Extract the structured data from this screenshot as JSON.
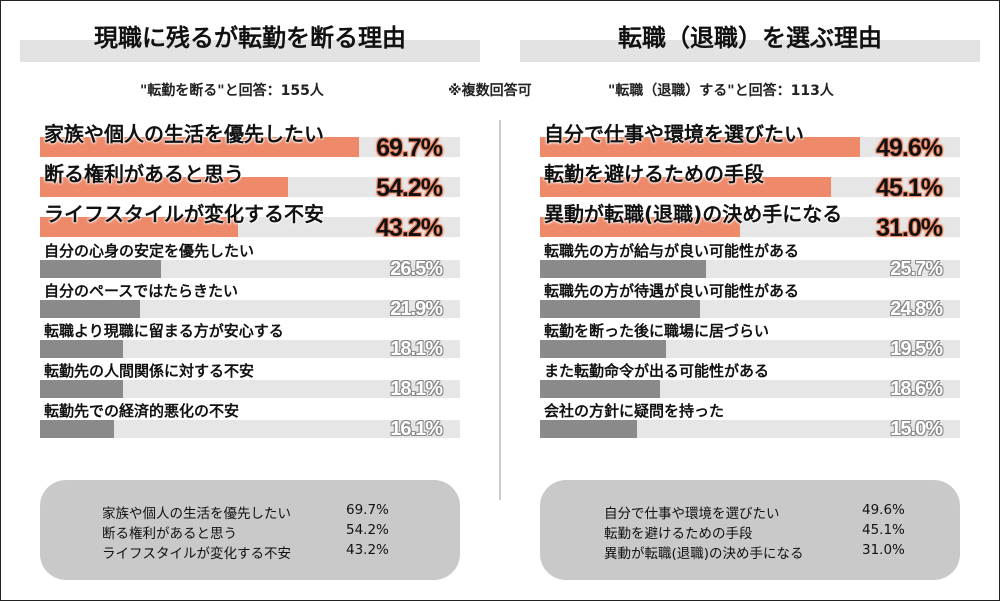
{
  "note": "※複数回答可",
  "colors": {
    "highlight": "#ee8a6a",
    "other": "#8a8a8a",
    "track": "#e6e6e6"
  },
  "chart_data": [
    {
      "type": "bar",
      "orientation": "horizontal",
      "title": "現職に残るが転勤を断る理由",
      "subtitle": "\"転勤を断る\"と回答：155人",
      "categories": [
        "家族や個人の生活を優先したい",
        "断る権利があると思う",
        "ライフスタイルが変化する不安",
        "自分の心身の安定を優先したい",
        "自分のペースではたらきたい",
        "転職より現職に留まる方が安心する",
        "転勤先の人間関係に対する不安",
        "転勤先での経済的悪化の不安"
      ],
      "values": [
        69.7,
        54.2,
        43.2,
        26.5,
        21.9,
        18.1,
        18.1,
        16.1
      ],
      "labels": [
        "69.7%",
        "54.2%",
        "43.2%",
        "26.5%",
        "21.9%",
        "18.1%",
        "18.1%",
        "16.1%"
      ],
      "summary": [
        {
          "label": "家族や個人の生活を優先したい",
          "value": "69.7%"
        },
        {
          "label": "断る権利があると思う",
          "value": "54.2%"
        },
        {
          "label": "ライフスタイルが変化する不安",
          "value": "43.2%"
        }
      ]
    },
    {
      "type": "bar",
      "orientation": "horizontal",
      "title": "転職（退職）を選ぶ理由",
      "subtitle": "\"転職（退職）する\"と回答：113人",
      "categories": [
        "自分で仕事や環境を選びたい",
        "転勤を避けるための手段",
        "異動が転職(退職)の決め手になる",
        "転職先の方が給与が良い可能性がある",
        "転職先の方が待遇が良い可能性がある",
        "転勤を断った後に職場に居づらい",
        "また転勤命令が出る可能性がある",
        "会社の方針に疑問を持った"
      ],
      "values": [
        49.6,
        45.1,
        31.0,
        25.7,
        24.8,
        19.5,
        18.6,
        15.0
      ],
      "labels": [
        "49.6%",
        "45.1%",
        "31.0%",
        "25.7%",
        "24.8%",
        "19.5%",
        "18.6%",
        "15.0%"
      ],
      "summary": [
        {
          "label": "自分で仕事や環境を選びたい",
          "value": "49.6%"
        },
        {
          "label": "転勤を避けるための手段",
          "value": "45.1%"
        },
        {
          "label": "異動が転職(退職)の決め手になる",
          "value": "31.0%"
        }
      ]
    }
  ]
}
